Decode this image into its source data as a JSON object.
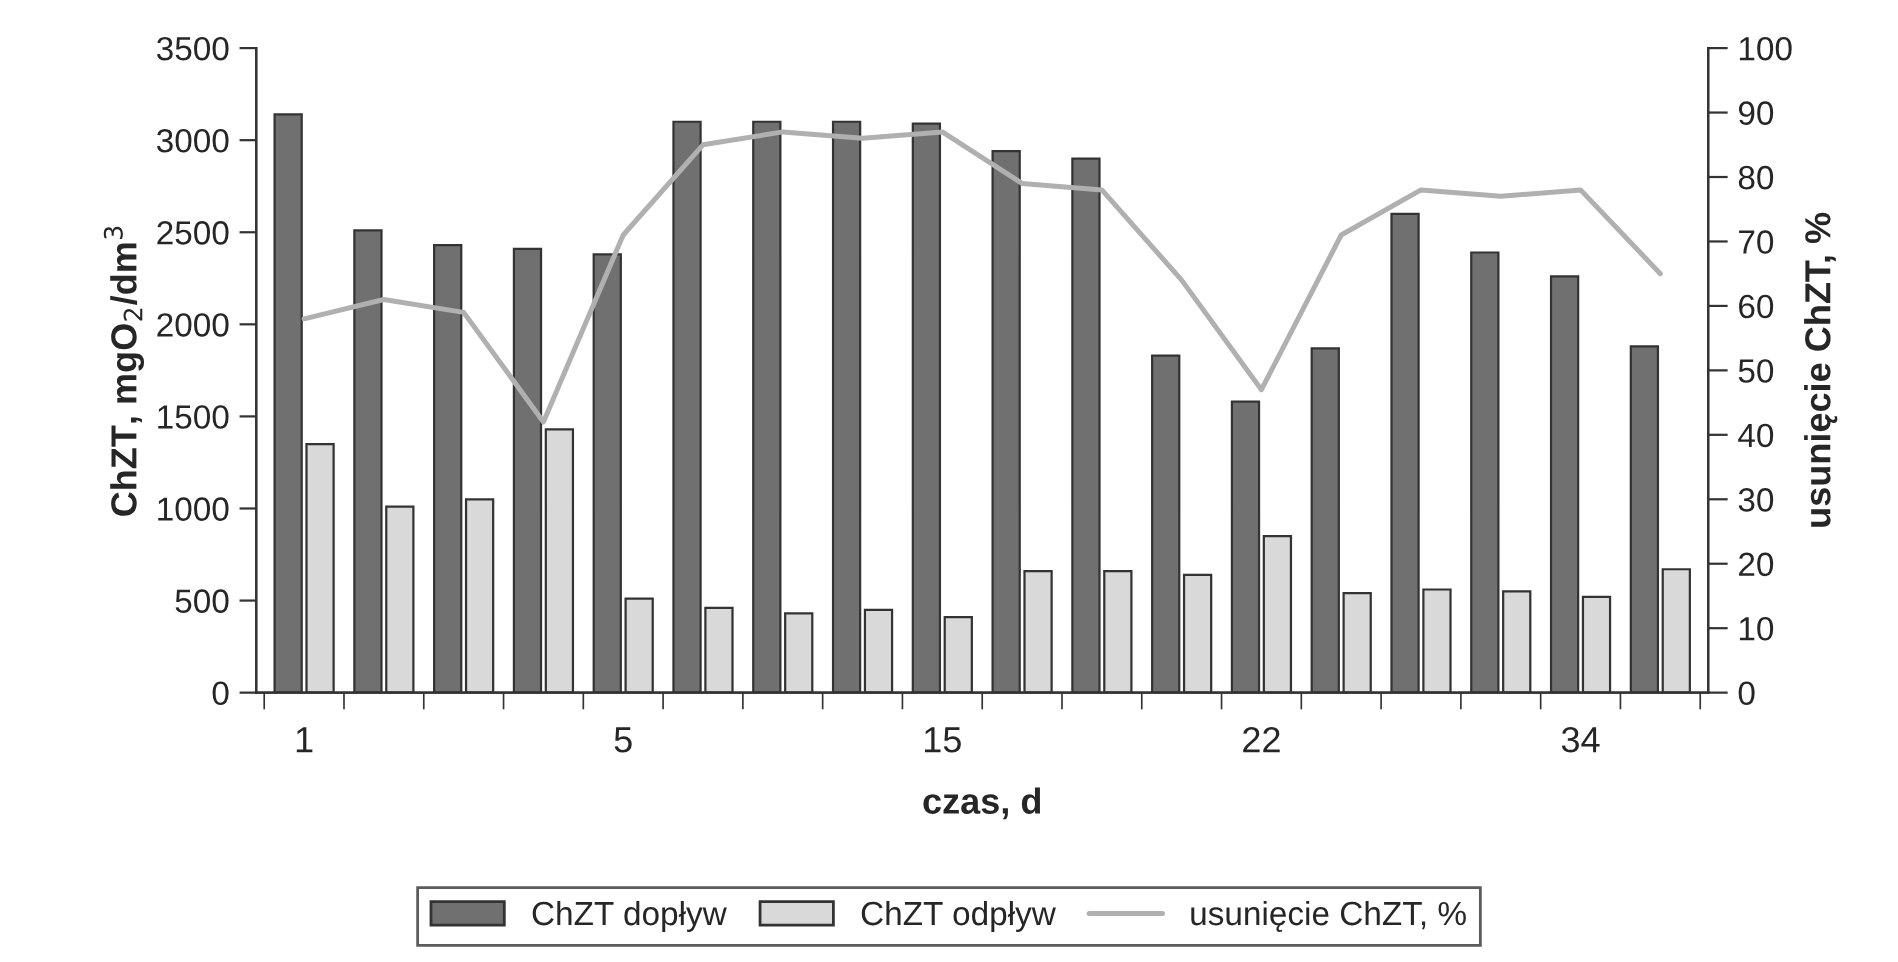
{
  "chart_data": {
    "type": "bar",
    "xlabel": "czas, d",
    "ylabel": "ChZT, mgO$_{2}$/dm$^{3}$",
    "y2label": "usunięcie ChZT, %",
    "categories": [
      "1",
      null,
      null,
      null,
      "5",
      null,
      null,
      null,
      "15",
      null,
      null,
      null,
      "22",
      null,
      null,
      null,
      "34",
      null
    ],
    "series": [
      {
        "name": "ChZT dopływ",
        "color": "#707070",
        "values": [
          3140,
          2510,
          2430,
          2410,
          2380,
          3100,
          3100,
          3100,
          3090,
          2940,
          2900,
          1830,
          1580,
          1870,
          2600,
          2390,
          2260,
          1880
        ]
      },
      {
        "name": "ChZT odpływ",
        "color": "#d9d9d9",
        "values": [
          1350,
          1010,
          1050,
          1430,
          510,
          460,
          430,
          450,
          410,
          660,
          660,
          640,
          850,
          540,
          560,
          550,
          520,
          670
        ]
      },
      {
        "name": "usunięcie ChZT, %",
        "type": "line",
        "axis": "y2",
        "color": "#b0b0b0",
        "values": [
          58,
          61,
          59,
          42,
          71,
          85,
          87,
          86,
          87,
          79,
          78,
          64,
          47,
          71,
          78,
          77,
          78,
          65
        ]
      }
    ],
    "ylim": [
      0,
      3500
    ],
    "yticks": [
      0,
      500,
      1000,
      1500,
      2000,
      2500,
      3000,
      3500
    ],
    "y2lim": [
      0,
      100
    ],
    "y2ticks": [
      0,
      10,
      20,
      30,
      40,
      50,
      60,
      70,
      80,
      90,
      100
    ],
    "grid": false,
    "legend": "bottom",
    "marker": "none",
    "line_style": "solid"
  }
}
